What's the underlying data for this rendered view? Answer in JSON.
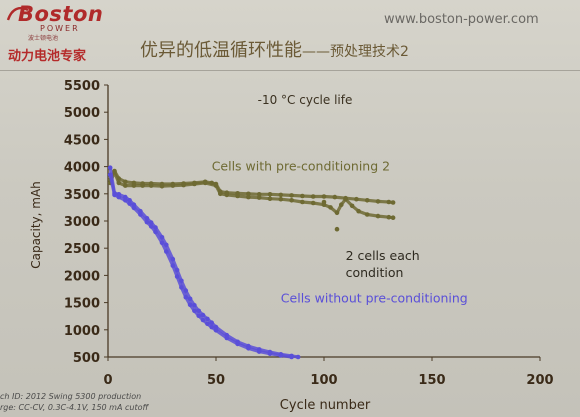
{
  "header": {
    "brand": "Boston",
    "brand_sub": "POWER",
    "brand_cn": "波士顿电池",
    "tagline": "动力电池专家",
    "website": "www.boston-power.com",
    "slide_title": "优异的低温循环性能",
    "slide_title_suffix": "——预处理技术2"
  },
  "footnote": {
    "line1": "ch ID: 2012 Swing 5300 production",
    "line2": "rge:     CC-CV, 0.3C-4.1V, 150 mA cutoff"
  },
  "colors": {
    "series_pre": "#6e6a33",
    "series_without": "#5a4fd8",
    "axis_text": "#4a3520",
    "brand_red": "#b02a2a"
  },
  "chart_data": {
    "type": "scatter",
    "title": "-10 °C cycle life",
    "xlabel": "Cycle number",
    "ylabel": "Capacity, mAh",
    "xlim": [
      0,
      200
    ],
    "ylim": [
      500,
      5500
    ],
    "xticks": [
      0,
      50,
      100,
      150,
      200
    ],
    "yticks": [
      500,
      1000,
      1500,
      2000,
      2500,
      3000,
      3500,
      4000,
      4500,
      5000,
      5500
    ],
    "grid": false,
    "annotations": [
      {
        "text": "Cells with pre-conditioning 2",
        "x": 48,
        "y": 3930
      },
      {
        "text": "2 cells each",
        "x": 110,
        "y": 2280
      },
      {
        "text": "condition",
        "x": 110,
        "y": 1970
      },
      {
        "text": "Cells without pre-conditioning",
        "x": 80,
        "y": 1500
      }
    ],
    "series": [
      {
        "key": "pre_cell_a",
        "group": "Cells with pre-conditioning 2",
        "x": [
          1,
          3,
          5,
          8,
          12,
          16,
          20,
          25,
          30,
          35,
          40,
          45,
          48,
          50,
          52,
          55,
          60,
          65,
          70,
          75,
          80,
          85,
          90,
          95,
          100,
          105,
          110,
          115,
          120,
          125,
          130,
          132
        ],
        "y": [
          3760,
          3920,
          3780,
          3720,
          3700,
          3690,
          3690,
          3680,
          3680,
          3690,
          3700,
          3720,
          3700,
          3680,
          3540,
          3520,
          3510,
          3500,
          3490,
          3490,
          3480,
          3470,
          3460,
          3450,
          3450,
          3440,
          3420,
          3400,
          3380,
          3360,
          3350,
          3340
        ]
      },
      {
        "key": "pre_cell_b",
        "group": "Cells with pre-conditioning 2",
        "x": [
          1,
          3,
          5,
          8,
          12,
          16,
          20,
          25,
          30,
          35,
          40,
          45,
          50,
          52,
          55,
          60,
          65,
          70,
          75,
          80,
          85,
          90,
          95,
          100,
          103,
          106,
          108,
          110,
          113,
          116,
          120,
          125,
          130,
          132
        ],
        "y": [
          3700,
          3900,
          3700,
          3650,
          3650,
          3650,
          3650,
          3640,
          3650,
          3660,
          3680,
          3700,
          3650,
          3500,
          3480,
          3460,
          3440,
          3430,
          3410,
          3400,
          3380,
          3350,
          3330,
          3300,
          3250,
          3150,
          3300,
          3400,
          3280,
          3180,
          3120,
          3090,
          3070,
          3060
        ]
      },
      {
        "key": "pre_outlier",
        "group": "Cells with pre-conditioning 2",
        "x": [
          100,
          106
        ],
        "y": [
          3350,
          2850
        ]
      },
      {
        "key": "without_cell_a",
        "group": "Cells without pre-conditioning",
        "x": [
          1,
          3,
          5,
          8,
          10,
          12,
          15,
          18,
          20,
          22,
          25,
          27,
          30,
          32,
          34,
          36,
          38,
          40,
          42,
          44,
          46,
          48,
          50,
          55,
          60,
          65,
          70,
          75,
          80,
          85,
          88
        ],
        "y": [
          3980,
          3510,
          3490,
          3440,
          3380,
          3300,
          3180,
          3050,
          2970,
          2880,
          2700,
          2560,
          2300,
          2100,
          1900,
          1720,
          1570,
          1450,
          1350,
          1270,
          1200,
          1130,
          1050,
          900,
          780,
          700,
          640,
          590,
          550,
          520,
          500
        ]
      },
      {
        "key": "without_cell_b",
        "group": "Cells without pre-conditioning",
        "x": [
          1,
          3,
          5,
          8,
          10,
          12,
          15,
          18,
          20,
          22,
          25,
          27,
          30,
          32,
          34,
          36,
          38,
          40,
          42,
          44,
          46,
          48,
          50,
          55,
          60,
          65,
          70,
          75,
          80,
          85
        ],
        "y": [
          3850,
          3480,
          3440,
          3380,
          3320,
          3240,
          3120,
          2980,
          2900,
          2800,
          2600,
          2440,
          2180,
          1980,
          1780,
          1600,
          1460,
          1350,
          1260,
          1180,
          1110,
          1050,
          990,
          850,
          740,
          660,
          600,
          560,
          530,
          500
        ]
      }
    ]
  }
}
